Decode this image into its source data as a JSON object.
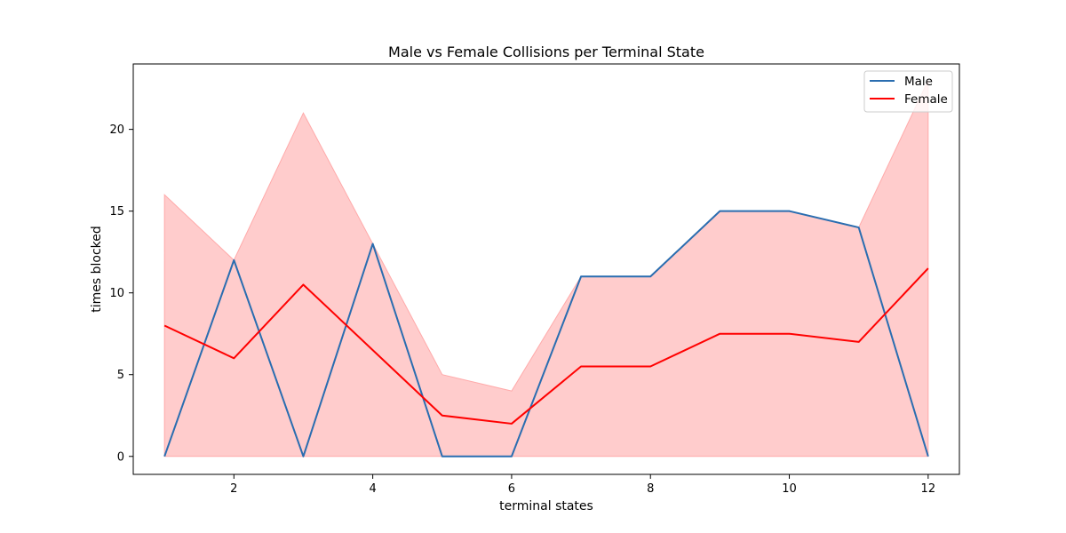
{
  "chart_data": {
    "type": "line",
    "title": "Male vs Female Collisions per Terminal State",
    "xlabel": "terminal states",
    "ylabel": "times blocked",
    "xlim": [
      0.55,
      12.45
    ],
    "ylim": [
      -1.1,
      24
    ],
    "x_ticks": [
      2,
      4,
      6,
      8,
      10,
      12
    ],
    "y_ticks": [
      0,
      5,
      10,
      15,
      20
    ],
    "x": [
      1,
      2,
      3,
      4,
      5,
      6,
      7,
      8,
      9,
      10,
      11,
      12
    ],
    "series": [
      {
        "name": "Male",
        "color": "#2a6db0",
        "values": [
          0,
          12,
          0,
          13,
          0,
          0,
          11,
          11,
          15,
          15,
          14,
          0
        ]
      },
      {
        "name": "Female",
        "color": "#ff0000",
        "values": [
          8,
          6,
          10.5,
          6.5,
          2.5,
          2,
          5.5,
          5.5,
          7.5,
          7.5,
          7,
          11.5
        ]
      }
    ],
    "band": {
      "color": "#ffcccc",
      "edge_color": "#ffaaaa",
      "lower": [
        0,
        0,
        0,
        0,
        0,
        0,
        0,
        0,
        0,
        0,
        0,
        0
      ],
      "upper": [
        16,
        12,
        21,
        13,
        5,
        4,
        11,
        11,
        15,
        15,
        14,
        23
      ]
    },
    "grid": false,
    "legend_position": "top-right"
  }
}
